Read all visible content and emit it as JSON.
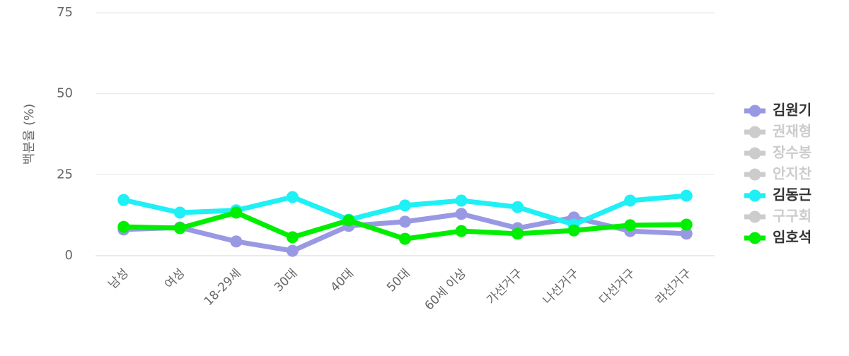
{
  "chart_data": {
    "type": "line",
    "y_axis_label": "백분율 (%)",
    "categories": [
      "남성",
      "여성",
      "18-29세",
      "30대",
      "40대",
      "50대",
      "60세 이상",
      "가선거구",
      "나선거구",
      "다선거구",
      "라선거구"
    ],
    "ylim": [
      0,
      75
    ],
    "yticks": [
      0,
      25,
      50,
      75
    ],
    "grid": true,
    "legend": "right",
    "series": [
      {
        "name": "김원기",
        "color": "#9999e3",
        "visible": true,
        "values": [
          8.1,
          8.7,
          4.4,
          1.5,
          9.2,
          10.5,
          12.9,
          8.5,
          11.8,
          7.6,
          6.8
        ]
      },
      {
        "name": "권재형",
        "color": "#cccccc",
        "visible": false,
        "values": [
          null,
          null,
          null,
          null,
          null,
          null,
          null,
          null,
          null,
          null,
          null
        ]
      },
      {
        "name": "장수봉",
        "color": "#cccccc",
        "visible": false,
        "values": [
          null,
          null,
          null,
          null,
          null,
          null,
          null,
          null,
          null,
          null,
          null
        ]
      },
      {
        "name": "안지찬",
        "color": "#cccccc",
        "visible": false,
        "values": [
          null,
          null,
          null,
          null,
          null,
          null,
          null,
          null,
          null,
          null,
          null
        ]
      },
      {
        "name": "김동근",
        "color": "#1ef0f5",
        "visible": true,
        "values": [
          17.2,
          13.3,
          14.0,
          18.1,
          11.1,
          15.5,
          17.0,
          15.0,
          9.6,
          17.0,
          18.5
        ]
      },
      {
        "name": "구구회",
        "color": "#cccccc",
        "visible": false,
        "values": [
          null,
          null,
          null,
          null,
          null,
          null,
          null,
          null,
          null,
          null,
          null
        ]
      },
      {
        "name": "임호석",
        "color": "#00ee00",
        "visible": true,
        "values": [
          8.9,
          8.5,
          13.3,
          5.7,
          10.9,
          5.2,
          7.6,
          6.8,
          7.8,
          9.4,
          9.6
        ]
      }
    ]
  }
}
